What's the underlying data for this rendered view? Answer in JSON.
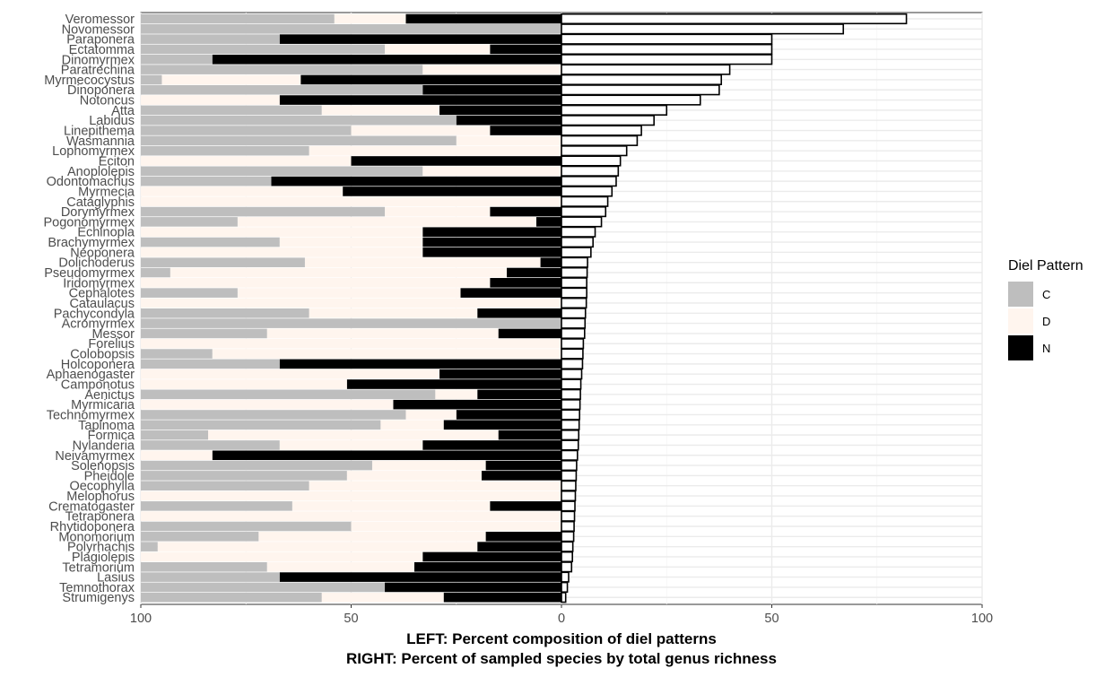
{
  "chart_data": {
    "type": "bar",
    "xlabel_left": "LEFT: Percent composition of diel patterns",
    "xlabel_right": "RIGHT: Percent of sampled species by total genus richness",
    "x_ticks": [
      "100",
      "50",
      "0",
      "50",
      "100"
    ],
    "colors": {
      "C": "#bebebe",
      "D": "#fff5ee",
      "N": "#000000",
      "richness_fill": "#ffffff",
      "richness_stroke": "#000000"
    },
    "legend": {
      "title": "Diel Pattern",
      "entries": [
        "C",
        "D",
        "N"
      ],
      "placement": "right"
    },
    "genera": [
      {
        "name": "Veromessor",
        "C": 46,
        "D": 17,
        "N": 37,
        "richness": 82
      },
      {
        "name": "Novomessor",
        "C": 100,
        "D": 0,
        "N": 0,
        "richness": 67
      },
      {
        "name": "Paraponera",
        "C": 33,
        "D": 0,
        "N": 67,
        "richness": 50
      },
      {
        "name": "Ectatomma",
        "C": 58,
        "D": 25,
        "N": 17,
        "richness": 50
      },
      {
        "name": "Dinomyrmex",
        "C": 17,
        "D": 0,
        "N": 83,
        "richness": 50
      },
      {
        "name": "Paratrechina",
        "C": 67,
        "D": 33,
        "N": 0,
        "richness": 40
      },
      {
        "name": "Myrmecocystus",
        "C": 5,
        "D": 33,
        "N": 62,
        "richness": 38
      },
      {
        "name": "Dinoponera",
        "C": 67,
        "D": 0,
        "N": 33,
        "richness": 37.5
      },
      {
        "name": "Notoncus",
        "C": 0,
        "D": 33,
        "N": 67,
        "richness": 33
      },
      {
        "name": "Atta",
        "C": 43,
        "D": 28,
        "N": 29,
        "richness": 25
      },
      {
        "name": "Labidus",
        "C": 75,
        "D": 0,
        "N": 25,
        "richness": 22
      },
      {
        "name": "Linepithema",
        "C": 50,
        "D": 33,
        "N": 17,
        "richness": 19
      },
      {
        "name": "Wasmannia",
        "C": 75,
        "D": 25,
        "N": 0,
        "richness": 18
      },
      {
        "name": "Lophomyrmex",
        "C": 40,
        "D": 60,
        "N": 0,
        "richness": 15.5
      },
      {
        "name": "Eciton",
        "C": 0,
        "D": 50,
        "N": 50,
        "richness": 14
      },
      {
        "name": "Anoplolepis",
        "C": 67,
        "D": 33,
        "N": 0,
        "richness": 13.5
      },
      {
        "name": "Odontomachus",
        "C": 31,
        "D": 0,
        "N": 69,
        "richness": 13
      },
      {
        "name": "Myrmecia",
        "C": 0,
        "D": 48,
        "N": 52,
        "richness": 12
      },
      {
        "name": "Cataglyphis",
        "C": 0,
        "D": 100,
        "N": 0,
        "richness": 11
      },
      {
        "name": "Dorymyrmex",
        "C": 58,
        "D": 25,
        "N": 17,
        "richness": 10.5
      },
      {
        "name": "Pogonomyrmex",
        "C": 23,
        "D": 71,
        "N": 6,
        "richness": 9.5
      },
      {
        "name": "Echinopla",
        "C": 0,
        "D": 67,
        "N": 33,
        "richness": 8
      },
      {
        "name": "Brachymyrmex",
        "C": 33,
        "D": 34,
        "N": 33,
        "richness": 7.5
      },
      {
        "name": "Neoponera",
        "C": 0,
        "D": 67,
        "N": 33,
        "richness": 7
      },
      {
        "name": "Dolichoderus",
        "C": 39,
        "D": 56,
        "N": 5,
        "richness": 6.2
      },
      {
        "name": "Pseudomyrmex",
        "C": 7,
        "D": 80,
        "N": 13,
        "richness": 6.1
      },
      {
        "name": "Iridomyrmex",
        "C": 0,
        "D": 83,
        "N": 17,
        "richness": 6
      },
      {
        "name": "Cephalotes",
        "C": 23,
        "D": 53,
        "N": 24,
        "richness": 6
      },
      {
        "name": "Cataulacus",
        "C": 0,
        "D": 100,
        "N": 0,
        "richness": 5.9
      },
      {
        "name": "Pachycondyla",
        "C": 40,
        "D": 40,
        "N": 20,
        "richness": 5.7
      },
      {
        "name": "Acromyrmex",
        "C": 100,
        "D": 0,
        "N": 0,
        "richness": 5.6
      },
      {
        "name": "Messor",
        "C": 30,
        "D": 55,
        "N": 15,
        "richness": 5.5
      },
      {
        "name": "Forelius",
        "C": 0,
        "D": 100,
        "N": 0,
        "richness": 5.2
      },
      {
        "name": "Colobopsis",
        "C": 17,
        "D": 83,
        "N": 0,
        "richness": 5.1
      },
      {
        "name": "Holcoponera",
        "C": 33,
        "D": 0,
        "N": 67,
        "richness": 5
      },
      {
        "name": "Aphaenogaster",
        "C": 0,
        "D": 71,
        "N": 29,
        "richness": 4.8
      },
      {
        "name": "Camponotus",
        "C": 0,
        "D": 49,
        "N": 51,
        "richness": 4.6
      },
      {
        "name": "Aenictus",
        "C": 70,
        "D": 10,
        "N": 20,
        "richness": 4.5
      },
      {
        "name": "Myrmicaria",
        "C": 0,
        "D": 60,
        "N": 40,
        "richness": 4.4
      },
      {
        "name": "Technomyrmex",
        "C": 63,
        "D": 12,
        "N": 25,
        "richness": 4.3
      },
      {
        "name": "Tapinoma",
        "C": 57,
        "D": 15,
        "N": 28,
        "richness": 4.2
      },
      {
        "name": "Formica",
        "C": 16,
        "D": 69,
        "N": 15,
        "richness": 4.1
      },
      {
        "name": "Nylanderia",
        "C": 33,
        "D": 34,
        "N": 33,
        "richness": 4
      },
      {
        "name": "Neivamyrmex",
        "C": 0,
        "D": 17,
        "N": 83,
        "richness": 3.8
      },
      {
        "name": "Solenopsis",
        "C": 55,
        "D": 27,
        "N": 18,
        "richness": 3.6
      },
      {
        "name": "Pheidole",
        "C": 49,
        "D": 32,
        "N": 19,
        "richness": 3.5
      },
      {
        "name": "Oecophylla",
        "C": 40,
        "D": 60,
        "N": 0,
        "richness": 3.4
      },
      {
        "name": "Melophorus",
        "C": 0,
        "D": 100,
        "N": 0,
        "richness": 3.3
      },
      {
        "name": "Crematogaster",
        "C": 36,
        "D": 47,
        "N": 17,
        "richness": 3.2
      },
      {
        "name": "Tetraponera",
        "C": 0,
        "D": 100,
        "N": 0,
        "richness": 3.1
      },
      {
        "name": "Rhytidoponera",
        "C": 50,
        "D": 50,
        "N": 0,
        "richness": 3
      },
      {
        "name": "Monomorium",
        "C": 28,
        "D": 54,
        "N": 18,
        "richness": 2.9
      },
      {
        "name": "Polyrhachis",
        "C": 4,
        "D": 76,
        "N": 20,
        "richness": 2.7
      },
      {
        "name": "Plagiolepis",
        "C": 0,
        "D": 67,
        "N": 33,
        "richness": 2.6
      },
      {
        "name": "Tetramorium",
        "C": 30,
        "D": 35,
        "N": 35,
        "richness": 2.4
      },
      {
        "name": "Lasius",
        "C": 33,
        "D": 0,
        "N": 67,
        "richness": 1.7
      },
      {
        "name": "Temnothorax",
        "C": 58,
        "D": 0,
        "N": 42,
        "richness": 1.4
      },
      {
        "name": "Strumigenys",
        "C": 43,
        "D": 29,
        "N": 28,
        "richness": 1
      }
    ]
  }
}
